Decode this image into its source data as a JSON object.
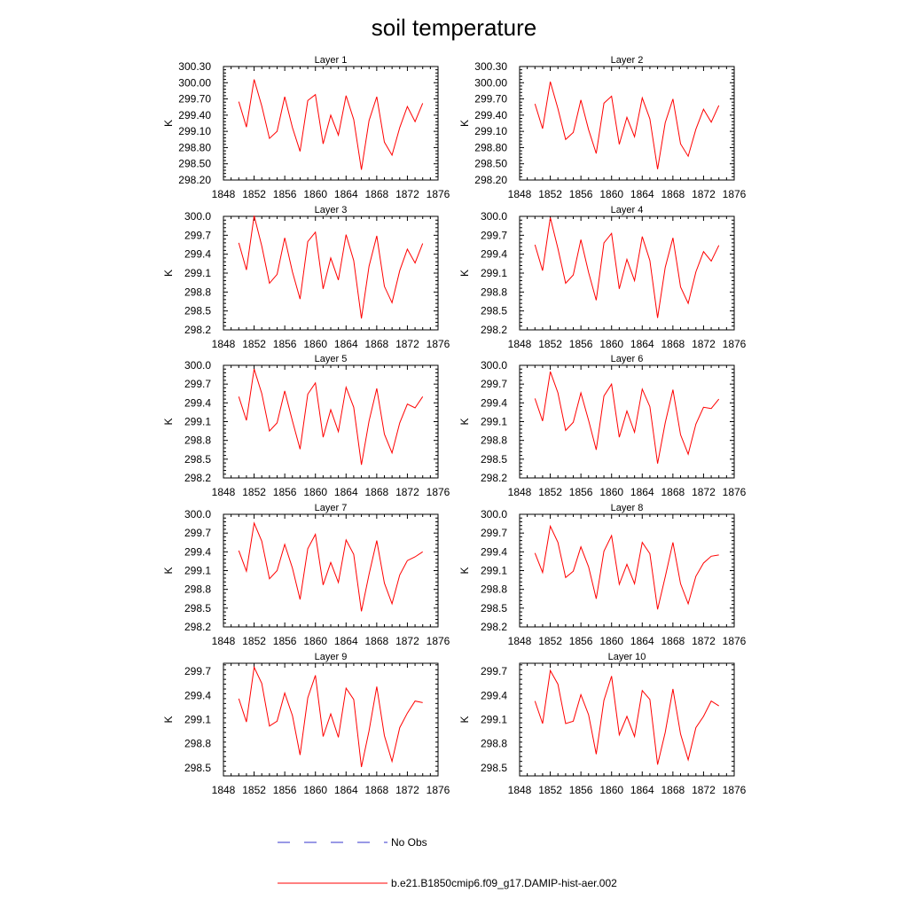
{
  "title": "soil temperature",
  "colors": {
    "model": "#ff0000",
    "obs": "#3333cc",
    "axis": "#000000"
  },
  "legend": [
    {
      "label": "No Obs",
      "style": "dashed",
      "color": "#3333cc"
    },
    {
      "label": "b.e21.B1850cmip6.f09_g17.DAMIP-hist-aer.002",
      "style": "solid",
      "color": "#ff0000"
    }
  ],
  "chart_data": [
    {
      "type": "line",
      "title": "Layer 1",
      "ylabel": "K",
      "xlim": [
        1848,
        1876
      ],
      "ylim": [
        298.2,
        300.3
      ],
      "xticks": [
        "1848",
        "1852",
        "1856",
        "1860",
        "1864",
        "1868",
        "1872",
        "1876"
      ],
      "yticks": [
        "298.20",
        "298.50",
        "298.80",
        "299.10",
        "299.40",
        "299.70",
        "300.00",
        "300.30"
      ],
      "x": [
        1850,
        1851,
        1852,
        1853,
        1854,
        1855,
        1856,
        1857,
        1858,
        1859,
        1860,
        1861,
        1862,
        1863,
        1864,
        1865,
        1866,
        1867,
        1868,
        1869,
        1870,
        1871,
        1872,
        1873,
        1874
      ],
      "series": [
        {
          "name": "b.e21.B1850cmip6.f09_g17.DAMIP-hist-aer.002",
          "values": [
            299.65,
            299.18,
            300.06,
            299.57,
            298.97,
            299.1,
            299.74,
            299.17,
            298.73,
            299.67,
            299.78,
            298.87,
            299.4,
            299.03,
            299.76,
            299.32,
            298.39,
            299.3,
            299.74,
            298.9,
            298.66,
            299.17,
            299.56,
            299.28,
            299.62
          ]
        }
      ]
    },
    {
      "type": "line",
      "title": "Layer 2",
      "ylabel": "K",
      "xlim": [
        1848,
        1876
      ],
      "ylim": [
        298.2,
        300.3
      ],
      "xticks": [
        "1848",
        "1852",
        "1856",
        "1860",
        "1864",
        "1868",
        "1872",
        "1876"
      ],
      "yticks": [
        "298.20",
        "298.50",
        "298.80",
        "299.10",
        "299.40",
        "299.70",
        "300.00",
        "300.30"
      ],
      "x": [
        1850,
        1851,
        1852,
        1853,
        1854,
        1855,
        1856,
        1857,
        1858,
        1859,
        1860,
        1861,
        1862,
        1863,
        1864,
        1865,
        1866,
        1867,
        1868,
        1869,
        1870,
        1871,
        1872,
        1873,
        1874
      ],
      "series": [
        {
          "name": "b.e21.B1850cmip6.f09_g17.DAMIP-hist-aer.002",
          "values": [
            299.61,
            299.15,
            300.02,
            299.52,
            298.95,
            299.08,
            299.68,
            299.13,
            298.69,
            299.62,
            299.75,
            298.86,
            299.36,
            299.0,
            299.72,
            299.33,
            298.4,
            299.26,
            299.7,
            298.87,
            298.64,
            299.14,
            299.51,
            299.27,
            299.58
          ]
        }
      ]
    },
    {
      "type": "line",
      "title": "Layer 3",
      "ylabel": "K",
      "xlim": [
        1848,
        1876
      ],
      "ylim": [
        298.2,
        300.0
      ],
      "xticks": [
        "1848",
        "1852",
        "1856",
        "1860",
        "1864",
        "1868",
        "1872",
        "1876"
      ],
      "yticks": [
        "298.2",
        "298.5",
        "298.8",
        "299.1",
        "299.4",
        "299.7",
        "300.0"
      ],
      "x": [
        1850,
        1851,
        1852,
        1853,
        1854,
        1855,
        1856,
        1857,
        1858,
        1859,
        1860,
        1861,
        1862,
        1863,
        1864,
        1865,
        1866,
        1867,
        1868,
        1869,
        1870,
        1871,
        1872,
        1873,
        1874
      ],
      "series": [
        {
          "name": "b.e21.B1850cmip6.f09_g17.DAMIP-hist-aer.002",
          "values": [
            299.58,
            299.15,
            300.01,
            299.53,
            298.94,
            299.08,
            299.66,
            299.12,
            298.69,
            299.6,
            299.75,
            298.85,
            299.34,
            298.99,
            299.71,
            299.3,
            298.38,
            299.21,
            299.69,
            298.89,
            298.63,
            299.14,
            299.48,
            299.26,
            299.57
          ]
        }
      ]
    },
    {
      "type": "line",
      "title": "Layer 4",
      "ylabel": "K",
      "xlim": [
        1848,
        1876
      ],
      "ylim": [
        298.2,
        300.0
      ],
      "xticks": [
        "1848",
        "1852",
        "1856",
        "1860",
        "1864",
        "1868",
        "1872",
        "1876"
      ],
      "yticks": [
        "298.2",
        "298.5",
        "298.8",
        "299.1",
        "299.4",
        "299.7",
        "300.0"
      ],
      "x": [
        1850,
        1851,
        1852,
        1853,
        1854,
        1855,
        1856,
        1857,
        1858,
        1859,
        1860,
        1861,
        1862,
        1863,
        1864,
        1865,
        1866,
        1867,
        1868,
        1869,
        1870,
        1871,
        1872,
        1873,
        1874
      ],
      "series": [
        {
          "name": "b.e21.B1850cmip6.f09_g17.DAMIP-hist-aer.002",
          "values": [
            299.55,
            299.14,
            299.98,
            299.49,
            298.94,
            299.07,
            299.63,
            299.11,
            298.67,
            299.58,
            299.73,
            298.85,
            299.32,
            298.98,
            299.68,
            299.3,
            298.39,
            299.19,
            299.66,
            298.88,
            298.62,
            299.12,
            299.44,
            299.29,
            299.54
          ]
        }
      ]
    },
    {
      "type": "line",
      "title": "Layer 5",
      "ylabel": "K",
      "xlim": [
        1848,
        1876
      ],
      "ylim": [
        298.2,
        300.0
      ],
      "xticks": [
        "1848",
        "1852",
        "1856",
        "1860",
        "1864",
        "1868",
        "1872",
        "1876"
      ],
      "yticks": [
        "298.2",
        "298.5",
        "298.8",
        "299.1",
        "299.4",
        "299.7",
        "300.0"
      ],
      "x": [
        1850,
        1851,
        1852,
        1853,
        1854,
        1855,
        1856,
        1857,
        1858,
        1859,
        1860,
        1861,
        1862,
        1863,
        1864,
        1865,
        1866,
        1867,
        1868,
        1869,
        1870,
        1871,
        1872,
        1873,
        1874
      ],
      "series": [
        {
          "name": "b.e21.B1850cmip6.f09_g17.DAMIP-hist-aer.002",
          "values": [
            299.5,
            299.12,
            299.94,
            299.55,
            298.95,
            299.08,
            299.59,
            299.11,
            298.66,
            299.54,
            299.72,
            298.85,
            299.29,
            298.94,
            299.65,
            299.33,
            298.41,
            299.11,
            299.63,
            298.9,
            298.6,
            299.08,
            299.38,
            299.32,
            299.5
          ]
        }
      ]
    },
    {
      "type": "line",
      "title": "Layer 6",
      "ylabel": "K",
      "xlim": [
        1848,
        1876
      ],
      "ylim": [
        298.2,
        300.0
      ],
      "xticks": [
        "1848",
        "1852",
        "1856",
        "1860",
        "1864",
        "1868",
        "1872",
        "1876"
      ],
      "yticks": [
        "298.2",
        "298.5",
        "298.8",
        "299.1",
        "299.4",
        "299.7",
        "300.0"
      ],
      "x": [
        1850,
        1851,
        1852,
        1853,
        1854,
        1855,
        1856,
        1857,
        1858,
        1859,
        1860,
        1861,
        1862,
        1863,
        1864,
        1865,
        1866,
        1867,
        1868,
        1869,
        1870,
        1871,
        1872,
        1873,
        1874
      ],
      "series": [
        {
          "name": "b.e21.B1850cmip6.f09_g17.DAMIP-hist-aer.002",
          "values": [
            299.47,
            299.11,
            299.9,
            299.56,
            298.96,
            299.09,
            299.56,
            299.12,
            298.65,
            299.51,
            299.7,
            298.85,
            299.27,
            298.93,
            299.62,
            299.34,
            298.43,
            299.08,
            299.61,
            298.89,
            298.58,
            299.06,
            299.33,
            299.31,
            299.46
          ]
        }
      ]
    },
    {
      "type": "line",
      "title": "Layer 7",
      "ylabel": "K",
      "xlim": [
        1848,
        1876
      ],
      "ylim": [
        298.2,
        300.0
      ],
      "xticks": [
        "1848",
        "1852",
        "1856",
        "1860",
        "1864",
        "1868",
        "1872",
        "1876"
      ],
      "yticks": [
        "298.2",
        "298.5",
        "298.8",
        "299.1",
        "299.4",
        "299.7",
        "300.0"
      ],
      "x": [
        1850,
        1851,
        1852,
        1853,
        1854,
        1855,
        1856,
        1857,
        1858,
        1859,
        1860,
        1861,
        1862,
        1863,
        1864,
        1865,
        1866,
        1867,
        1868,
        1869,
        1870,
        1871,
        1872,
        1873,
        1874
      ],
      "series": [
        {
          "name": "b.e21.B1850cmip6.f09_g17.DAMIP-hist-aer.002",
          "values": [
            299.42,
            299.09,
            299.86,
            299.57,
            298.97,
            299.1,
            299.52,
            299.14,
            298.64,
            299.45,
            299.68,
            298.87,
            299.23,
            298.91,
            299.59,
            299.36,
            298.45,
            299.04,
            299.58,
            298.9,
            298.57,
            299.03,
            299.26,
            299.32,
            299.4
          ]
        }
      ]
    },
    {
      "type": "line",
      "title": "Layer 8",
      "ylabel": "K",
      "xlim": [
        1848,
        1876
      ],
      "ylim": [
        298.2,
        300.0
      ],
      "xticks": [
        "1848",
        "1852",
        "1856",
        "1860",
        "1864",
        "1868",
        "1872",
        "1876"
      ],
      "yticks": [
        "298.2",
        "298.5",
        "298.8",
        "299.1",
        "299.4",
        "299.7",
        "300.0"
      ],
      "x": [
        1850,
        1851,
        1852,
        1853,
        1854,
        1855,
        1856,
        1857,
        1858,
        1859,
        1860,
        1861,
        1862,
        1863,
        1864,
        1865,
        1866,
        1867,
        1868,
        1869,
        1870,
        1871,
        1872,
        1873,
        1874
      ],
      "series": [
        {
          "name": "b.e21.B1850cmip6.f09_g17.DAMIP-hist-aer.002",
          "values": [
            299.38,
            299.07,
            299.81,
            299.55,
            298.99,
            299.09,
            299.48,
            299.16,
            298.65,
            299.41,
            299.66,
            298.88,
            299.2,
            298.89,
            299.55,
            299.37,
            298.48,
            299.0,
            299.55,
            298.89,
            298.57,
            299.01,
            299.22,
            299.33,
            299.35
          ]
        }
      ]
    },
    {
      "type": "line",
      "title": "Layer 9",
      "ylabel": "K",
      "xlim": [
        1848,
        1876
      ],
      "ylim": [
        298.4,
        299.8
      ],
      "xticks": [
        "1848",
        "1852",
        "1856",
        "1860",
        "1864",
        "1868",
        "1872",
        "1876"
      ],
      "yticks": [
        "298.5",
        "298.8",
        "299.1",
        "299.4",
        "299.7"
      ],
      "x": [
        1850,
        1851,
        1852,
        1853,
        1854,
        1855,
        1856,
        1857,
        1858,
        1859,
        1860,
        1861,
        1862,
        1863,
        1864,
        1865,
        1866,
        1867,
        1868,
        1869,
        1870,
        1871,
        1872,
        1873,
        1874
      ],
      "series": [
        {
          "name": "b.e21.B1850cmip6.f09_g17.DAMIP-hist-aer.002",
          "values": [
            299.36,
            299.07,
            299.75,
            299.55,
            299.02,
            299.08,
            299.43,
            299.15,
            298.66,
            299.37,
            299.65,
            298.89,
            299.17,
            298.88,
            299.49,
            299.35,
            298.51,
            298.96,
            299.51,
            298.9,
            298.58,
            299.0,
            299.18,
            299.33,
            299.31
          ]
        }
      ]
    },
    {
      "type": "line",
      "title": "Layer 10",
      "ylabel": "K",
      "xlim": [
        1848,
        1876
      ],
      "ylim": [
        298.4,
        299.8
      ],
      "xticks": [
        "1848",
        "1852",
        "1856",
        "1860",
        "1864",
        "1868",
        "1872",
        "1876"
      ],
      "yticks": [
        "298.5",
        "298.8",
        "299.1",
        "299.4",
        "299.7"
      ],
      "x": [
        1850,
        1851,
        1852,
        1853,
        1854,
        1855,
        1856,
        1857,
        1858,
        1859,
        1860,
        1861,
        1862,
        1863,
        1864,
        1865,
        1866,
        1867,
        1868,
        1869,
        1870,
        1871,
        1872,
        1873,
        1874
      ],
      "series": [
        {
          "name": "b.e21.B1850cmip6.f09_g17.DAMIP-hist-aer.002",
          "values": [
            299.33,
            299.05,
            299.71,
            299.54,
            299.05,
            299.08,
            299.41,
            299.16,
            298.67,
            299.34,
            299.64,
            298.91,
            299.14,
            298.89,
            299.46,
            299.35,
            298.54,
            298.94,
            299.48,
            298.92,
            298.6,
            299.0,
            299.14,
            299.33,
            299.27
          ]
        }
      ]
    }
  ]
}
